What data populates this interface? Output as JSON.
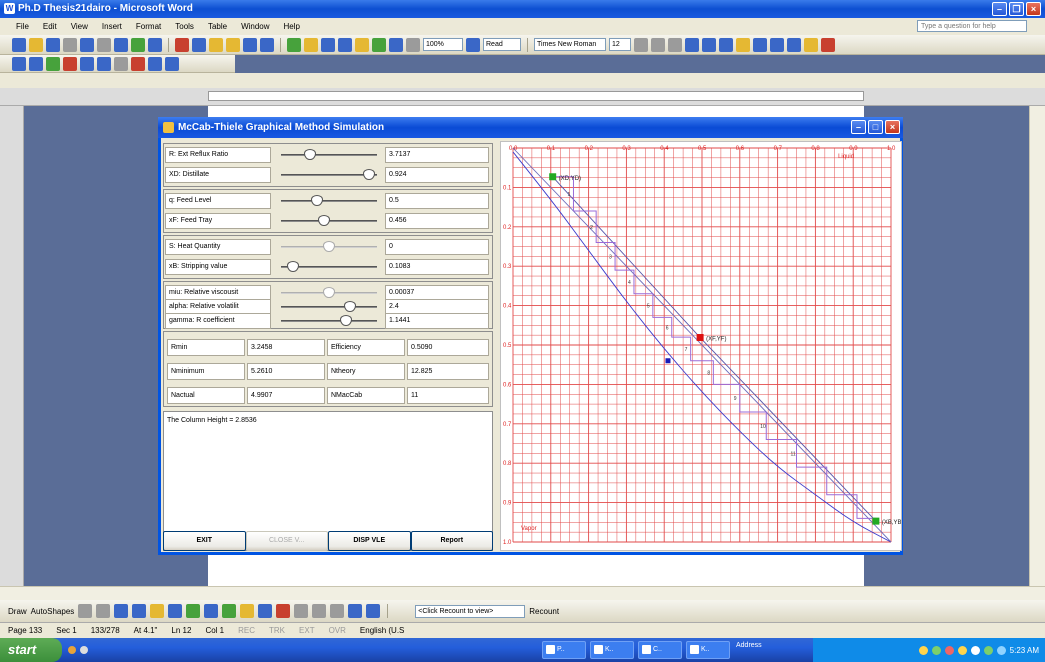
{
  "word": {
    "title": "Ph.D Thesis21dairo - Microsoft Word",
    "menu": [
      "File",
      "Edit",
      "View",
      "Insert",
      "Format",
      "Tools",
      "Table",
      "Window",
      "Help"
    ],
    "help_placeholder": "Type a question for help",
    "zoom": "100%",
    "read_label": "Read",
    "font_name": "Times New Roman",
    "font_size": "12",
    "draw_label": "Draw",
    "autoshapes_label": "AutoShapes",
    "recount_text": "<Click Recount to view>",
    "recount_button": "Recount",
    "status": {
      "page": "Page 133",
      "sec": "Sec 1",
      "pages": "133/278",
      "at": "At 4.1\"",
      "ln": "Ln 12",
      "col": "Col 1",
      "rec": "REC",
      "trk": "TRK",
      "ext": "EXT",
      "ovr": "OVR",
      "lang": "English (U.S"
    }
  },
  "taskbar": {
    "start": "start",
    "tasks": [
      "P..",
      "K..",
      "C..",
      "K.."
    ],
    "address": "Address",
    "clock": "5:23 AM"
  },
  "sim": {
    "title": "McCab-Thiele Graphical Method Simulation",
    "params": [
      {
        "label": "R: Ext Reflux Ratio",
        "value": "3.7137",
        "pos": 0.3,
        "enabled": true
      },
      {
        "label": "XD: Distillate",
        "value": "0.924",
        "pos": 0.92,
        "enabled": true
      },
      {
        "label": "q: Feed Level",
        "value": "0.5",
        "pos": 0.38,
        "enabled": true
      },
      {
        "label": "xF: Feed Tray",
        "value": "0.456",
        "pos": 0.45,
        "enabled": true
      },
      {
        "label": "S: Heat Quantity",
        "value": "0",
        "pos": 0.5,
        "enabled": false
      },
      {
        "label": "xB: Stripping value",
        "value": "0.1083",
        "pos": 0.12,
        "enabled": true
      },
      {
        "label": "miu: Relative viscousit",
        "value": "0.00037",
        "pos": 0.5,
        "enabled": false
      },
      {
        "label": "alpha: Relative volatilit",
        "value": "2.4",
        "pos": 0.72,
        "enabled": true
      },
      {
        "label": "gamma: R coefficient",
        "value": "1.1441",
        "pos": 0.68,
        "enabled": true
      }
    ],
    "results": [
      [
        "Rmin",
        "3.2458",
        "Efficiency",
        "0.5090"
      ],
      [
        "Nminimum",
        "5.2610",
        "Ntheory",
        "12.825"
      ],
      [
        "Nactual",
        "4.9907",
        "NMacCab",
        "11"
      ]
    ],
    "output_text": "The Column Height = 2.8536",
    "buttons": [
      "EXIT",
      "CLOSE V...",
      "DISP VLE",
      "Report"
    ]
  },
  "chart_data": {
    "type": "line",
    "x_ticks": [
      "0.0",
      "0.1",
      "0.2",
      "0.3",
      "0.4",
      "0.5",
      "0.6",
      "0.7",
      "0.8",
      "0.9",
      "1.0"
    ],
    "y_ticks": [
      "0.1",
      "0.2",
      "0.3",
      "0.4",
      "0.5",
      "0.6",
      "0.7",
      "0.8",
      "0.9",
      "1.0"
    ],
    "top_label": "Liquid",
    "bottom_label": "Vapor",
    "xlim": [
      0,
      1
    ],
    "ylim": [
      0,
      1
    ],
    "grid": true,
    "points": [
      {
        "label": "(XD,YD)",
        "x": 0.105,
        "y": 0.927,
        "color": "#22aa22"
      },
      {
        "label": "(XF,YF)",
        "x": 0.495,
        "y": 0.519,
        "color": "#dd1111"
      },
      {
        "label": "(XB,YB)",
        "x": 0.96,
        "y": 0.053,
        "color": "#22aa22"
      }
    ],
    "series": [
      {
        "role": "equilibrium",
        "color": "#3b3bcc",
        "x": [
          0.0,
          0.1,
          0.2,
          0.3,
          0.4,
          0.5,
          0.6,
          0.7,
          0.8,
          0.9,
          1.0
        ],
        "y": [
          0.99,
          0.87,
          0.74,
          0.61,
          0.49,
          0.38,
          0.28,
          0.19,
          0.12,
          0.05,
          0.0
        ]
      },
      {
        "role": "diagonal",
        "color": "#6b6bbb",
        "x": [
          0.0,
          1.0
        ],
        "y": [
          1.0,
          0.0
        ]
      },
      {
        "role": "operating",
        "color": "#5555aa",
        "x": [
          0.105,
          0.495,
          0.96
        ],
        "y": [
          0.927,
          0.519,
          0.053
        ]
      },
      {
        "role": "stages",
        "color": "#9a6bd8",
        "x": [
          0.105,
          0.16,
          0.16,
          0.22,
          0.22,
          0.27,
          0.27,
          0.32,
          0.32,
          0.37,
          0.37,
          0.42,
          0.42,
          0.47,
          0.47,
          0.53,
          0.53,
          0.6,
          0.6,
          0.67,
          0.67,
          0.75,
          0.75,
          0.83,
          0.83,
          0.91,
          0.91,
          0.96
        ],
        "y": [
          0.927,
          0.927,
          0.84,
          0.84,
          0.76,
          0.76,
          0.69,
          0.69,
          0.63,
          0.63,
          0.57,
          0.57,
          0.52,
          0.52,
          0.46,
          0.46,
          0.4,
          0.4,
          0.33,
          0.33,
          0.26,
          0.26,
          0.19,
          0.19,
          0.12,
          0.12,
          0.06,
          0.06
        ]
      }
    ],
    "stage_labels": [
      "1",
      "2",
      "3",
      "4",
      "5",
      "6",
      "7",
      "8",
      "9",
      "10",
      "11"
    ]
  }
}
